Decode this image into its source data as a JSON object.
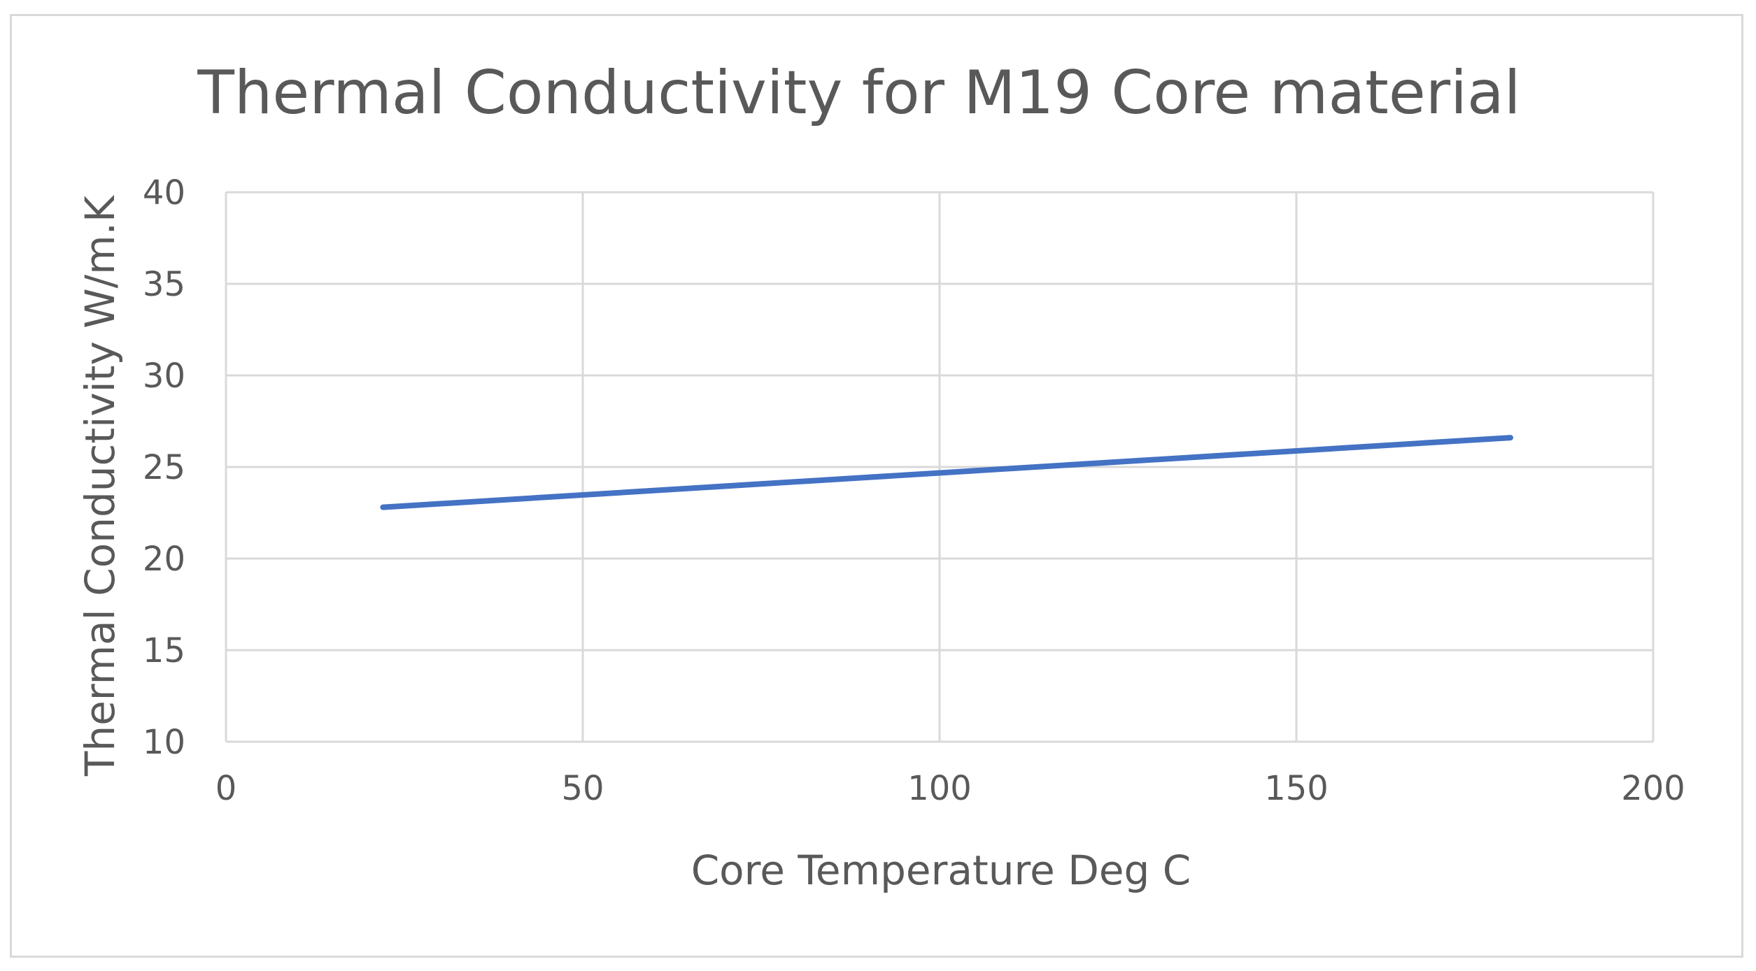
{
  "chart_data": {
    "type": "line",
    "title": "Thermal Conductivity for M19 Core material",
    "xlabel": "Core Temperature Deg C",
    "ylabel": "Thermal Conductivity W/m.K",
    "xlim": [
      0,
      200
    ],
    "ylim": [
      10,
      40
    ],
    "xticks": [
      0,
      50,
      100,
      150,
      200
    ],
    "yticks": [
      10,
      15,
      20,
      25,
      30,
      35,
      40
    ],
    "grid": true,
    "legend": "none",
    "series": [
      {
        "name": "Thermal Conductivity",
        "color": "#4472c4",
        "x": [
          22,
          180
        ],
        "y": [
          22.8,
          26.6
        ]
      }
    ]
  }
}
